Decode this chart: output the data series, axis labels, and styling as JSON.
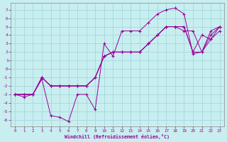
{
  "xlabel": "Windchill (Refroidissement éolien,°C)",
  "xlim": [
    -0.5,
    23.5
  ],
  "ylim": [
    -6.8,
    7.8
  ],
  "xticks": [
    0,
    1,
    2,
    3,
    4,
    5,
    6,
    7,
    8,
    9,
    10,
    11,
    12,
    13,
    14,
    15,
    16,
    17,
    18,
    19,
    20,
    21,
    22,
    23
  ],
  "yticks": [
    7,
    6,
    5,
    4,
    3,
    2,
    1,
    0,
    -1,
    -2,
    -3,
    -4,
    -5,
    -6
  ],
  "background_color": "#c8eef0",
  "line_color": "#990099",
  "grid_color": "#9dd4d8",
  "series": [
    {
      "x": [
        0,
        1,
        2,
        3,
        4,
        5,
        6,
        7,
        8,
        9,
        10,
        11,
        12,
        13,
        14,
        15,
        16,
        17,
        18,
        19,
        20,
        21,
        22,
        23
      ],
      "y": [
        -3,
        -3.3,
        -3,
        -1.2,
        -5.5,
        -5.7,
        -6.2,
        -3.0,
        -3.0,
        -4.8,
        3.0,
        1.5,
        4.5,
        4.5,
        4.5,
        5.5,
        6.5,
        7.0,
        7.2,
        6.5,
        1.8,
        2.0,
        4.5,
        5.0
      ]
    },
    {
      "x": [
        0,
        1,
        2,
        3,
        4,
        5,
        6,
        7,
        8,
        9,
        10,
        11,
        12,
        13,
        14,
        15,
        16,
        17,
        18,
        19,
        20,
        21,
        22,
        23
      ],
      "y": [
        -3,
        -3,
        -3,
        -1,
        -2,
        -2,
        -2,
        -2,
        -2,
        -1,
        1.5,
        2,
        2,
        2,
        2,
        3,
        4,
        5,
        5,
        5,
        2,
        2,
        3.5,
        5
      ]
    },
    {
      "x": [
        0,
        1,
        2,
        3,
        4,
        5,
        6,
        7,
        8,
        9,
        10,
        11,
        12,
        13,
        14,
        15,
        16,
        17,
        18,
        19,
        20,
        21,
        22,
        23
      ],
      "y": [
        -3,
        -3,
        -3,
        -1,
        -2,
        -2,
        -2,
        -2,
        -2,
        -1,
        1.5,
        2,
        2,
        2,
        2,
        3,
        4,
        5,
        5,
        5,
        2,
        4,
        3.5,
        4.5
      ]
    },
    {
      "x": [
        0,
        1,
        2,
        3,
        4,
        5,
        6,
        7,
        8,
        9,
        10,
        11,
        12,
        13,
        14,
        15,
        16,
        17,
        18,
        19,
        20,
        21,
        22,
        23
      ],
      "y": [
        -3,
        -3,
        -3,
        -1,
        -2,
        -2,
        -2,
        -2,
        -2,
        -1,
        1.5,
        2,
        2,
        2,
        2,
        3,
        4,
        5,
        5,
        4.5,
        4.5,
        2,
        4.0,
        5.0
      ]
    }
  ]
}
